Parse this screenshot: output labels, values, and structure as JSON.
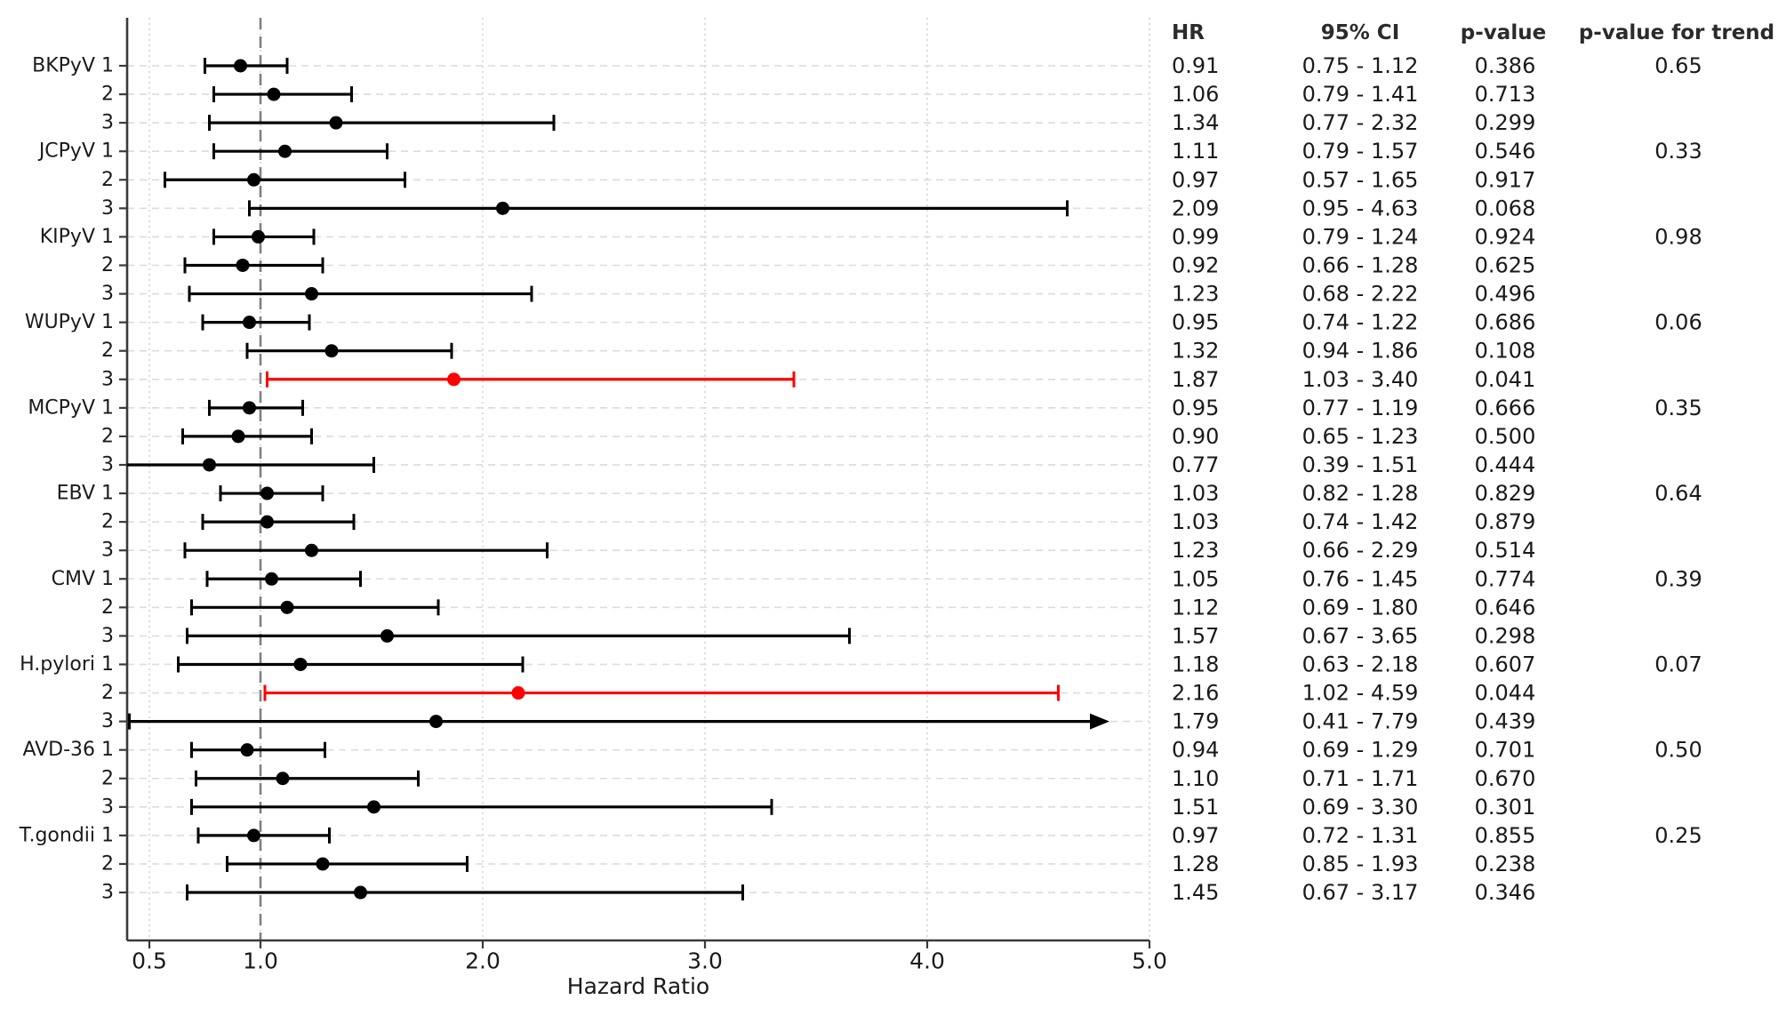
{
  "table": {
    "headers": {
      "hr": "HR",
      "ci": "95% CI",
      "p": "p-value",
      "p_trend": "p-value for trend"
    }
  },
  "chart_data": {
    "type": "forest",
    "title": "",
    "xlabel": "Hazard Ratio",
    "ylabel": "",
    "x_ticks": [
      0.5,
      1.0,
      2.0,
      3.0,
      4.0,
      5.0
    ],
    "xlim": [
      0.4,
      5.0
    ],
    "x_scale": "linear",
    "reference_line": 1.0,
    "grid": {
      "horizontal": "dashed",
      "vertical": "dotted"
    },
    "legend": "none",
    "colors": {
      "default": "#000000",
      "significant": "#ff0000",
      "reference_line": "#808080",
      "grid_line": "#dcdcdc",
      "spine": "#3a3a3a",
      "text": "#1a1a1a"
    },
    "rows": [
      {
        "group": "BKPyV",
        "level": "1",
        "hr": 0.91,
        "lo": 0.75,
        "hi": 1.12,
        "p": "0.386",
        "p_trend": "0.65",
        "significant": false
      },
      {
        "level": "2",
        "hr": 1.06,
        "lo": 0.79,
        "hi": 1.41,
        "p": "0.713",
        "significant": false
      },
      {
        "level": "3",
        "hr": 1.34,
        "lo": 0.77,
        "hi": 2.32,
        "p": "0.299",
        "significant": false
      },
      {
        "group": "JCPyV",
        "level": "1",
        "hr": 1.11,
        "lo": 0.79,
        "hi": 1.57,
        "p": "0.546",
        "p_trend": "0.33",
        "significant": false
      },
      {
        "level": "2",
        "hr": 0.97,
        "lo": 0.57,
        "hi": 1.65,
        "p": "0.917",
        "significant": false
      },
      {
        "level": "3",
        "hr": 2.09,
        "lo": 0.95,
        "hi": 4.63,
        "p": "0.068",
        "significant": false
      },
      {
        "group": "KIPyV",
        "level": "1",
        "hr": 0.99,
        "lo": 0.79,
        "hi": 1.24,
        "p": "0.924",
        "p_trend": "0.98",
        "significant": false
      },
      {
        "level": "2",
        "hr": 0.92,
        "lo": 0.66,
        "hi": 1.28,
        "p": "0.625",
        "significant": false
      },
      {
        "level": "3",
        "hr": 1.23,
        "lo": 0.68,
        "hi": 2.22,
        "p": "0.496",
        "significant": false
      },
      {
        "group": "WUPyV",
        "level": "1",
        "hr": 0.95,
        "lo": 0.74,
        "hi": 1.22,
        "p": "0.686",
        "p_trend": "0.06",
        "significant": false
      },
      {
        "level": "2",
        "hr": 1.32,
        "lo": 0.94,
        "hi": 1.86,
        "p": "0.108",
        "significant": false
      },
      {
        "level": "3",
        "hr": 1.87,
        "lo": 1.03,
        "hi": 3.4,
        "p": "0.041",
        "significant": true
      },
      {
        "group": "MCPyV",
        "level": "1",
        "hr": 0.95,
        "lo": 0.77,
        "hi": 1.19,
        "p": "0.666",
        "p_trend": "0.35",
        "significant": false
      },
      {
        "level": "2",
        "hr": 0.9,
        "lo": 0.65,
        "hi": 1.23,
        "p": "0.500",
        "significant": false
      },
      {
        "level": "3",
        "hr": 0.77,
        "lo": 0.39,
        "hi": 1.51,
        "p": "0.444",
        "significant": false
      },
      {
        "group": "EBV",
        "level": "1",
        "hr": 1.03,
        "lo": 0.82,
        "hi": 1.28,
        "p": "0.829",
        "p_trend": "0.64",
        "significant": false
      },
      {
        "level": "2",
        "hr": 1.03,
        "lo": 0.74,
        "hi": 1.42,
        "p": "0.879",
        "significant": false
      },
      {
        "level": "3",
        "hr": 1.23,
        "lo": 0.66,
        "hi": 2.29,
        "p": "0.514",
        "significant": false
      },
      {
        "group": "CMV",
        "level": "1",
        "hr": 1.05,
        "lo": 0.76,
        "hi": 1.45,
        "p": "0.774",
        "p_trend": "0.39",
        "significant": false
      },
      {
        "level": "2",
        "hr": 1.12,
        "lo": 0.69,
        "hi": 1.8,
        "p": "0.646",
        "significant": false
      },
      {
        "level": "3",
        "hr": 1.57,
        "lo": 0.67,
        "hi": 3.65,
        "p": "0.298",
        "significant": false
      },
      {
        "group": "H.pylori",
        "level": "1",
        "hr": 1.18,
        "lo": 0.63,
        "hi": 2.18,
        "p": "0.607",
        "p_trend": "0.07",
        "significant": false
      },
      {
        "level": "2",
        "hr": 2.16,
        "lo": 1.02,
        "hi": 4.59,
        "p": "0.044",
        "significant": true
      },
      {
        "level": "3",
        "hr": 1.79,
        "lo": 0.41,
        "hi": 7.79,
        "p": "0.439",
        "significant": false
      },
      {
        "group": "AVD-36",
        "level": "1",
        "hr": 0.94,
        "lo": 0.69,
        "hi": 1.29,
        "p": "0.701",
        "p_trend": "0.50",
        "significant": false
      },
      {
        "level": "2",
        "hr": 1.1,
        "lo": 0.71,
        "hi": 1.71,
        "p": "0.670",
        "significant": false
      },
      {
        "level": "3",
        "hr": 1.51,
        "lo": 0.69,
        "hi": 3.3,
        "p": "0.301",
        "significant": false
      },
      {
        "group": "T.gondii",
        "level": "1",
        "hr": 0.97,
        "lo": 0.72,
        "hi": 1.31,
        "p": "0.855",
        "p_trend": "0.25",
        "significant": false
      },
      {
        "level": "2",
        "hr": 1.28,
        "lo": 0.85,
        "hi": 1.93,
        "p": "0.238",
        "significant": false
      },
      {
        "level": "3",
        "hr": 1.45,
        "lo": 0.67,
        "hi": 3.17,
        "p": "0.346",
        "significant": false
      }
    ]
  }
}
